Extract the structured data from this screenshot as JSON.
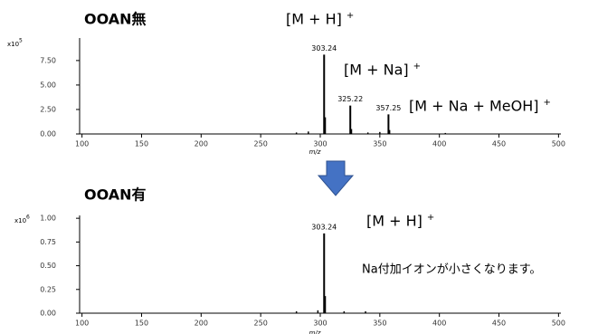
{
  "chart_data": [
    {
      "type": "spectrum",
      "title": "OOAN無",
      "scale_label": "x10",
      "scale_exponent": "5",
      "x_label": "m/z",
      "xlim": [
        98,
        502
      ],
      "xticks": [
        100,
        150,
        200,
        250,
        300,
        350,
        400,
        450,
        500
      ],
      "ylim": [
        0,
        9.8
      ],
      "yticks": [
        {
          "value": 0,
          "label": "0.00"
        },
        {
          "value": 2.5,
          "label": "2.50"
        },
        {
          "value": 5,
          "label": "5.00"
        },
        {
          "value": 7.5,
          "label": "7.50"
        }
      ],
      "color": "#000000",
      "labeled_x": [
        303.24,
        325.22,
        357.25
      ],
      "labeled_values": [
        8.1,
        2.9,
        2.0
      ],
      "x": [
        280,
        290,
        304.2,
        326.2,
        340,
        350,
        358.2,
        405
      ],
      "values": [
        0.15,
        0.25,
        1.7,
        0.5,
        0.15,
        0.2,
        0.4,
        0.1
      ],
      "annotations": [
        {
          "text": "[M + H]",
          "charge": "+"
        },
        {
          "text": "[M + Na]",
          "charge": "+"
        },
        {
          "text": "[M + Na + MeOH]",
          "charge": "+"
        }
      ]
    },
    {
      "type": "spectrum",
      "title": "OOAN有",
      "scale_label": "x10",
      "scale_exponent": "6",
      "x_label": "m/z",
      "xlim": [
        98,
        502
      ],
      "xticks": [
        100,
        150,
        200,
        250,
        300,
        350,
        400,
        450,
        500
      ],
      "ylim": [
        0,
        1.03
      ],
      "yticks": [
        {
          "value": 0,
          "label": "0.00"
        },
        {
          "value": 0.25,
          "label": "0.25"
        },
        {
          "value": 0.5,
          "label": "0.50"
        },
        {
          "value": 0.75,
          "label": "0.75"
        },
        {
          "value": 1,
          "label": "1.00"
        }
      ],
      "color": "#000000",
      "labeled_x": [
        303.24
      ],
      "labeled_values": [
        0.84
      ],
      "x": [
        280,
        298,
        304.2,
        320,
        338
      ],
      "values": [
        0.02,
        0.03,
        0.18,
        0.02,
        0.02
      ],
      "annotations": [
        {
          "text": "[M + H]",
          "charge": "+"
        },
        {
          "text": "Na付加イオンが小さくなります。"
        }
      ]
    }
  ]
}
